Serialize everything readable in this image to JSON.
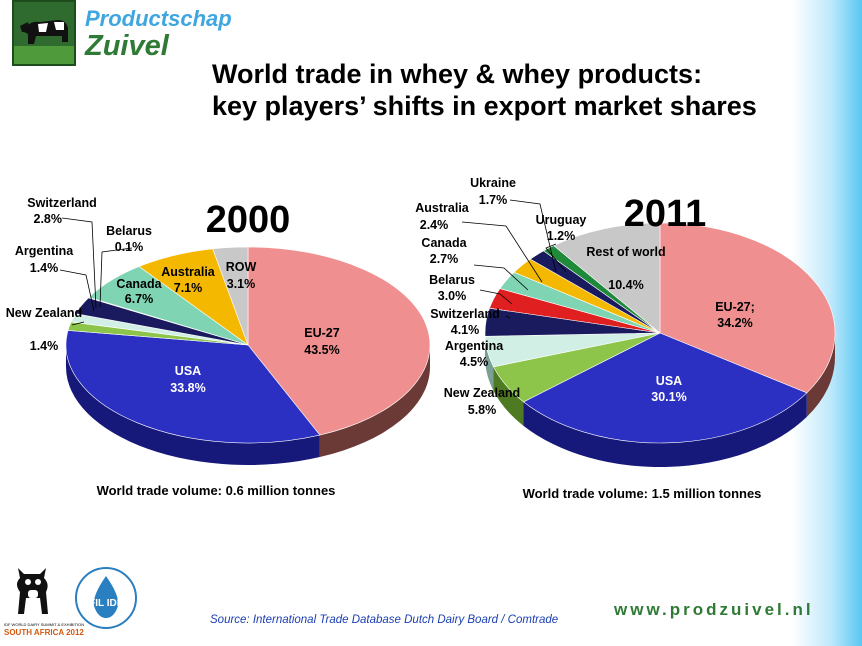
{
  "header": {
    "logo_line1": "Productschap",
    "logo_line2": "Zuivel",
    "title_line1": "World trade in whey & whey products:",
    "title_line2": "key players’ shifts in export market shares"
  },
  "chart_data": [
    {
      "type": "pie",
      "title": "2000",
      "note": "World trade volume: 0.6 million tonnes",
      "slices": [
        {
          "label": "EU-27",
          "value": 43.5,
          "value_text": "43.5%",
          "color": "#f08f8f",
          "side": "#6b3a36"
        },
        {
          "label": "USA",
          "value": 33.8,
          "value_text": "33.8%",
          "color": "#2b2fc2",
          "side": "#17197a"
        },
        {
          "label": "New Zealand",
          "value": 1.4,
          "value_text": "1.4%",
          "color": "#8dc44a",
          "side": "#4e7a22"
        },
        {
          "label": "Argentina",
          "value": 1.4,
          "value_text": "1.4%",
          "color": "#d2efe6",
          "side": "#7aa096"
        },
        {
          "label": "Switzerland",
          "value": 2.8,
          "value_text": "2.8%",
          "color": "#1a1a5e",
          "side": "#0c0c33"
        },
        {
          "label": "Belarus",
          "value": 0.1,
          "value_text": "0.1%",
          "color": "#e02020",
          "side": "#801010"
        },
        {
          "label": "Canada",
          "value": 6.7,
          "value_text": "6.7%",
          "color": "#7fd4b4",
          "side": "#3f8a70"
        },
        {
          "label": "Australia",
          "value": 7.1,
          "value_text": "7.1%",
          "color": "#f5b800",
          "side": "#8a6800"
        },
        {
          "label": "ROW",
          "value": 3.1,
          "value_text": "3.1%",
          "color": "#c8c8c8",
          "side": "#777777"
        }
      ]
    },
    {
      "type": "pie",
      "title": "2011",
      "note": "World trade volume: 1.5 million tonnes",
      "slices": [
        {
          "label": "EU-27;",
          "value": 34.2,
          "value_text": "34.2%",
          "color": "#f08f8f",
          "side": "#6b3a36"
        },
        {
          "label": "USA",
          "value": 30.1,
          "value_text": "30.1%",
          "color": "#2b2fc2",
          "side": "#17197a"
        },
        {
          "label": "New Zealand",
          "value": 5.8,
          "value_text": "5.8%",
          "color": "#8dc44a",
          "side": "#4e7a22"
        },
        {
          "label": "Argentina",
          "value": 4.5,
          "value_text": "4.5%",
          "color": "#d2efe6",
          "side": "#7aa096"
        },
        {
          "label": "Switzerland",
          "value": 4.1,
          "value_text": "4.1%",
          "color": "#1a1a5e",
          "side": "#0c0c33"
        },
        {
          "label": "Belarus",
          "value": 3.0,
          "value_text": "3.0%",
          "color": "#e02020",
          "side": "#801010"
        },
        {
          "label": "Canada",
          "value": 2.7,
          "value_text": "2.7%",
          "color": "#7fd4b4",
          "side": "#3f8a70"
        },
        {
          "label": "Australia",
          "value": 2.4,
          "value_text": "2.4%",
          "color": "#f5b800",
          "side": "#8a6800"
        },
        {
          "label": "Ukraine",
          "value": 1.7,
          "value_text": "1.7%",
          "color": "#1a1a5e",
          "side": "#0c0c33"
        },
        {
          "label": "Uruguay",
          "value": 1.2,
          "value_text": "1.2%",
          "color": "#1e8a3a",
          "side": "#0f4a1e"
        },
        {
          "label": "Rest of world",
          "value": 10.4,
          "value_text": "10.4%",
          "color": "#c8c8c8",
          "side": "#777777"
        }
      ]
    }
  ],
  "footer": {
    "source": "Source: International Trade Database Dutch Dairy Board / Comtrade",
    "url": "www.prodzuivel.nl",
    "summit_caption": "IDF WORLD DAIRY SUMMIT & EXHIBITION",
    "summit_place": "SOUTH AFRICA 2012",
    "idf_text": "FIL IDF"
  }
}
